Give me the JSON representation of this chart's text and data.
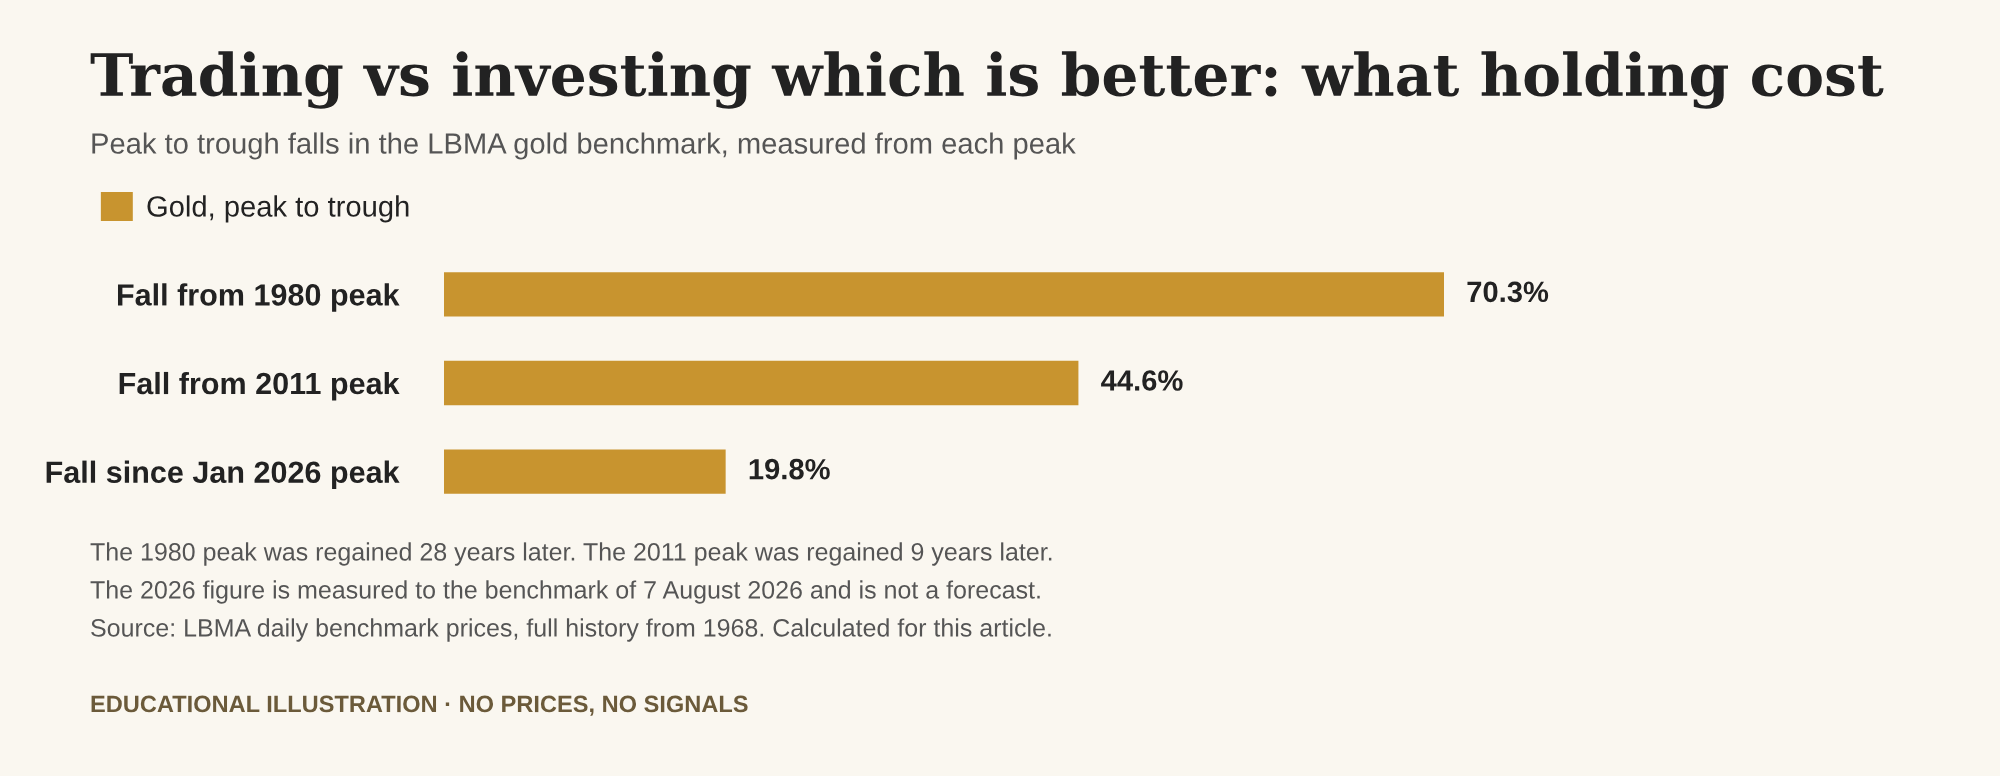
{
  "chart_data": {
    "type": "bar",
    "orientation": "horizontal",
    "legend": "top left",
    "grid": false,
    "title": "Trading vs investing which is better: what holding cost",
    "subtitle": "Peak to trough falls in the LBMA gold benchmark, measured from each peak",
    "categories": [
      "Fall from 1980 peak",
      "Fall from 2011 peak",
      "Fall since Jan 2026 peak"
    ],
    "series": [
      {
        "name": "Gold, peak to trough",
        "color": "#c8942f",
        "values": [
          70.3,
          44.6,
          19.8
        ],
        "value_labels": [
          "70.3%",
          "44.6%",
          "19.8%"
        ]
      }
    ],
    "annotations": [
      "The 1980 peak was regained 28 years later. The 2011 peak was regained 9 years later.",
      "The 2026 figure is measured to the benchmark of 7 August 2026 and is not a forecast.",
      "Source: LBMA daily benchmark prices, full history from 1968. Calculated for this article.",
      "EDUCATIONAL ILLUSTRATION · NO PRICES, NO SIGNALS"
    ]
  }
}
